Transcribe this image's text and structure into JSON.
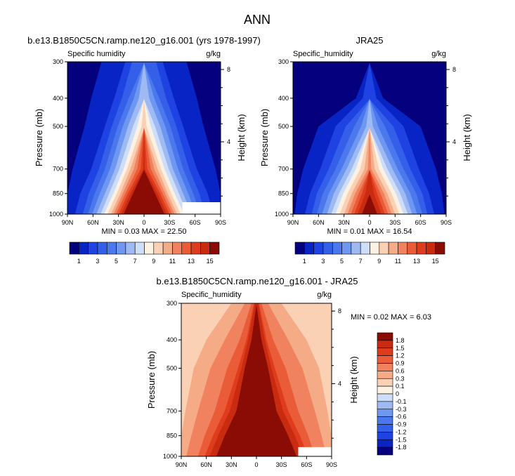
{
  "figure": {
    "title": "ANN"
  },
  "panels": [
    {
      "id": "model",
      "title": "b.e13.B1850C5CN.ramp.ne120_g16.001 (yrs 1978-1997)",
      "left_label": "Specific humidity",
      "right_label": "g/kg",
      "stats": "MIN =  0.03  MAX = 22.50"
    },
    {
      "id": "obs",
      "title": "JRA25",
      "left_label": "Specific_humidity",
      "right_label": "g/kg",
      "stats": "MIN =  0.01  MAX = 16.54"
    },
    {
      "id": "diff",
      "title": "b.e13.B1850C5CN.ramp.ne120_g16.001 - JRA25",
      "left_label": "Specific_humidity",
      "right_label": "g/kg",
      "stats": "MIN =  0.02  MAX =  6.03"
    }
  ],
  "chart_data": [
    {
      "type": "heatmap",
      "subtype": "filled-contour",
      "title": "b.e13.B1850C5CN.ramp.ne120_g16.001 (yrs 1978-1997)",
      "variable": "Specific humidity",
      "units": "g/kg",
      "xlabel": "",
      "ylabel": "Pressure (mb)",
      "y2label": "Height (km)",
      "x_ticks": [
        "90N",
        "60N",
        "30N",
        "0",
        "30S",
        "60S",
        "90S"
      ],
      "y_ticks": [
        300,
        400,
        500,
        700,
        850,
        1000
      ],
      "y2_ticks": [
        8,
        4
      ],
      "ylim": [
        1000,
        300
      ],
      "y_scale": "log-pressure",
      "levels": [
        1,
        2,
        3,
        4,
        5,
        6,
        7,
        8,
        9,
        10,
        11,
        12,
        13,
        14,
        15
      ],
      "min": 0.03,
      "max": 22.5,
      "contour_half_widths_deg": {
        "pressures": [
          300,
          400,
          500,
          700,
          850,
          1000
        ],
        "level_1": [
          50,
          62,
          70,
          84,
          90,
          90
        ],
        "level_2": [
          22,
          35,
          46,
          62,
          75,
          81
        ],
        "level_3": [
          14,
          26,
          38,
          53,
          65,
          72
        ],
        "level_4": [
          0,
          18,
          31,
          46,
          58,
          66
        ],
        "level_5": [
          0,
          12,
          25,
          40,
          52,
          61
        ],
        "level_6": [
          0,
          6,
          19,
          34,
          46,
          56
        ],
        "level_7": [
          0,
          0,
          13,
          29,
          41,
          51
        ],
        "level_8": [
          0,
          0,
          8,
          24,
          36,
          47
        ],
        "level_9": [
          0,
          0,
          3,
          20,
          32,
          43
        ],
        "level_10": [
          0,
          0,
          0,
          16,
          28,
          39
        ],
        "level_11": [
          0,
          0,
          0,
          12,
          25,
          36
        ],
        "level_12": [
          0,
          0,
          0,
          8,
          22,
          33
        ],
        "level_13": [
          0,
          0,
          0,
          4,
          19,
          30
        ],
        "level_14": [
          0,
          0,
          0,
          1,
          16,
          27
        ],
        "level_15": [
          0,
          0,
          0,
          0,
          13,
          24
        ]
      },
      "missing_region": {
        "lat_from": "45S",
        "lat_to": "90S",
        "p_from": 910,
        "p_to": 1000
      }
    },
    {
      "type": "heatmap",
      "subtype": "filled-contour",
      "title": "JRA25",
      "variable": "Specific_humidity",
      "units": "g/kg",
      "xlabel": "",
      "ylabel": "Pressure (mb)",
      "y2label": "Height (km)",
      "x_ticks": [
        "90N",
        "60N",
        "30N",
        "0",
        "30S",
        "60S",
        "90S"
      ],
      "y_ticks": [
        300,
        400,
        500,
        700,
        850,
        1000
      ],
      "y2_ticks": [
        8,
        4
      ],
      "ylim": [
        1000,
        300
      ],
      "y_scale": "log-pressure",
      "levels": [
        1,
        2,
        3,
        4,
        5,
        6,
        7,
        8,
        9,
        10,
        11,
        12,
        13,
        14,
        15
      ],
      "min": 0.01,
      "max": 16.54,
      "contour_half_widths_deg": {
        "pressures": [
          300,
          400,
          500,
          700,
          850,
          1000
        ],
        "level_1": [
          0,
          16,
          60,
          78,
          85,
          88
        ],
        "level_2": [
          0,
          8,
          40,
          58,
          70,
          76
        ],
        "level_3": [
          0,
          0,
          28,
          48,
          62,
          68
        ],
        "level_4": [
          0,
          0,
          18,
          40,
          55,
          62
        ],
        "level_5": [
          0,
          0,
          10,
          33,
          48,
          56
        ],
        "level_6": [
          0,
          0,
          4,
          27,
          42,
          50
        ],
        "level_7": [
          0,
          0,
          0,
          21,
          36,
          45
        ],
        "level_8": [
          0,
          0,
          0,
          16,
          31,
          40
        ],
        "level_9": [
          0,
          0,
          0,
          11,
          26,
          35
        ],
        "level_10": [
          0,
          0,
          0,
          6,
          21,
          30
        ],
        "level_11": [
          0,
          0,
          0,
          2,
          17,
          26
        ],
        "level_12": [
          0,
          0,
          0,
          0,
          13,
          22
        ],
        "level_13": [
          0,
          0,
          0,
          0,
          9,
          18
        ],
        "level_14": [
          0,
          0,
          0,
          0,
          5,
          14
        ],
        "level_15": [
          0,
          0,
          0,
          0,
          0,
          9
        ]
      }
    },
    {
      "type": "heatmap",
      "subtype": "filled-contour",
      "title": "b.e13.B1850C5CN.ramp.ne120_g16.001 - JRA25",
      "variable": "Specific_humidity",
      "units": "g/kg",
      "xlabel": "",
      "ylabel": "Pressure (mb)",
      "y2label": "Height (km)",
      "x_ticks": [
        "90N",
        "60N",
        "30N",
        "0",
        "30S",
        "60S",
        "90S"
      ],
      "y_ticks": [
        300,
        400,
        500,
        700,
        850,
        1000
      ],
      "y2_ticks": [
        8,
        4
      ],
      "ylim": [
        1000,
        300
      ],
      "y_scale": "log-pressure",
      "levels": [
        -1.8,
        -1.5,
        -1.2,
        -0.9,
        -0.6,
        -0.3,
        -0.1,
        0,
        0.1,
        0.3,
        0.6,
        0.9,
        1.2,
        1.5,
        1.8
      ],
      "min": 0.02,
      "max": 6.03,
      "contour_half_widths_deg": {
        "pressures": [
          300,
          400,
          500,
          700,
          850,
          1000
        ],
        "level_0.1": [
          90,
          90,
          90,
          90,
          90,
          90
        ],
        "level_0.3": [
          30,
          60,
          75,
          85,
          90,
          90
        ],
        "level_0.6": [
          14,
          38,
          55,
          70,
          78,
          84
        ],
        "level_0.9": [
          6,
          20,
          35,
          50,
          62,
          70
        ],
        "level_1.2": [
          3,
          12,
          22,
          38,
          52,
          62
        ],
        "level_1.5": [
          2,
          10,
          18,
          32,
          46,
          56
        ],
        "level_1.8": [
          0,
          6,
          14,
          24,
          38,
          48
        ]
      },
      "missing_region": {
        "lat_from": "50S",
        "lat_to": "90S",
        "p_from": 930,
        "p_to": 1000
      }
    }
  ],
  "colorbars": [
    {
      "labels": [
        "1",
        "3",
        "5",
        "7",
        "9",
        "11",
        "13",
        "15"
      ],
      "colors": [
        "#05007e",
        "#0924c4",
        "#1f43e2",
        "#345fe8",
        "#4b78ec",
        "#6d97f0",
        "#9fbaf3",
        "#cfdef8",
        "#fdf1e2",
        "#fbd1b6",
        "#f6ab87",
        "#f1825f",
        "#ea5b37",
        "#de3c1d",
        "#c92b11",
        "#8a0c04"
      ]
    },
    {
      "labels": [
        "1",
        "3",
        "5",
        "7",
        "9",
        "11",
        "13",
        "15"
      ],
      "colors": [
        "#05007e",
        "#0924c4",
        "#1f43e2",
        "#345fe8",
        "#4b78ec",
        "#6d97f0",
        "#9fbaf3",
        "#cfdef8",
        "#fdf1e2",
        "#fbd1b6",
        "#f6ab87",
        "#f1825f",
        "#ea5b37",
        "#de3c1d",
        "#c92b11",
        "#8a0c04"
      ]
    },
    {
      "labels": [
        "1.8",
        "1.5",
        "1.2",
        "0.9",
        "0.6",
        "0.3",
        "0.1",
        "0",
        "-0.1",
        "-0.3",
        "-0.6",
        "-0.9",
        "-1.2",
        "-1.5",
        "-1.8"
      ],
      "colors": [
        "#8a0c04",
        "#c92b11",
        "#de3c1d",
        "#ea5b37",
        "#f1825f",
        "#f6ab87",
        "#fbd1b6",
        "#fdf1e2",
        "#cfdef8",
        "#9fbaf3",
        "#6d97f0",
        "#4b78ec",
        "#345fe8",
        "#1f43e2",
        "#0924c4",
        "#05007e"
      ]
    }
  ]
}
